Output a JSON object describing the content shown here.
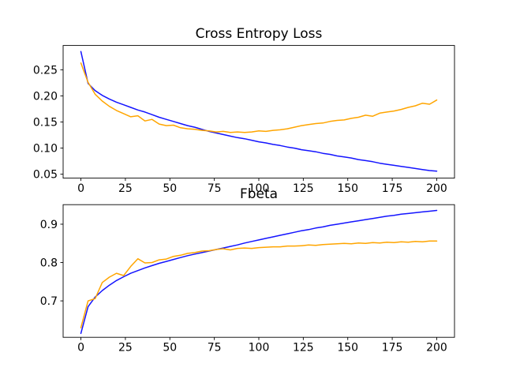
{
  "figure": {
    "background": "#ffffff",
    "axes_color": "#000000"
  },
  "chart_data": [
    {
      "type": "line",
      "title": "Cross Entropy Loss",
      "xlabel": "",
      "ylabel": "",
      "grid": false,
      "legend": "none",
      "xlim": [
        -10,
        210
      ],
      "ylim": [
        0.0425,
        0.2965
      ],
      "xticks": {
        "values": [
          0,
          25,
          50,
          75,
          100,
          125,
          150,
          175,
          200
        ],
        "labels": [
          "0",
          "25",
          "50",
          "75",
          "100",
          "125",
          "150",
          "175",
          "200"
        ]
      },
      "yticks": {
        "values": [
          0.05,
          0.1,
          0.15,
          0.2,
          0.25
        ],
        "labels": [
          "0.05",
          "0.10",
          "0.15",
          "0.20",
          "0.25"
        ]
      },
      "x": [
        0,
        4,
        8,
        12,
        16,
        20,
        24,
        28,
        32,
        36,
        40,
        44,
        48,
        52,
        56,
        60,
        64,
        68,
        72,
        76,
        80,
        84,
        88,
        92,
        96,
        100,
        104,
        108,
        112,
        116,
        120,
        124,
        128,
        132,
        136,
        140,
        144,
        148,
        152,
        156,
        160,
        164,
        168,
        172,
        176,
        180,
        184,
        188,
        192,
        196,
        200
      ],
      "series": [
        {
          "name": "blue",
          "color": "#1414ff",
          "values": [
            0.285,
            0.224,
            0.21,
            0.201,
            0.194,
            0.188,
            0.183,
            0.178,
            0.173,
            0.169,
            0.164,
            0.159,
            0.155,
            0.151,
            0.147,
            0.143,
            0.14,
            0.136,
            0.132,
            0.129,
            0.126,
            0.123,
            0.12,
            0.118,
            0.115,
            0.112,
            0.11,
            0.107,
            0.105,
            0.102,
            0.1,
            0.097,
            0.095,
            0.093,
            0.09,
            0.088,
            0.085,
            0.083,
            0.081,
            0.078,
            0.076,
            0.074,
            0.071,
            0.069,
            0.067,
            0.065,
            0.063,
            0.061,
            0.059,
            0.057,
            0.056
          ]
        },
        {
          "name": "orange",
          "color": "#ffa500",
          "values": [
            0.263,
            0.226,
            0.203,
            0.19,
            0.18,
            0.172,
            0.166,
            0.16,
            0.162,
            0.152,
            0.155,
            0.146,
            0.143,
            0.144,
            0.139,
            0.137,
            0.136,
            0.134,
            0.133,
            0.131,
            0.132,
            0.13,
            0.131,
            0.13,
            0.131,
            0.133,
            0.132,
            0.134,
            0.135,
            0.137,
            0.14,
            0.143,
            0.145,
            0.147,
            0.148,
            0.151,
            0.153,
            0.154,
            0.157,
            0.159,
            0.163,
            0.161,
            0.167,
            0.169,
            0.171,
            0.174,
            0.178,
            0.181,
            0.186,
            0.184,
            0.192
          ]
        }
      ]
    },
    {
      "type": "line",
      "title": "Fbeta",
      "xlabel": "",
      "ylabel": "",
      "grid": false,
      "legend": "none",
      "xlim": [
        -10,
        210
      ],
      "ylim": [
        0.605,
        0.951
      ],
      "xticks": {
        "values": [
          0,
          25,
          50,
          75,
          100,
          125,
          150,
          175,
          200
        ],
        "labels": [
          "0",
          "25",
          "50",
          "75",
          "100",
          "125",
          "150",
          "175",
          "200"
        ]
      },
      "yticks": {
        "values": [
          0.7,
          0.8,
          0.9
        ],
        "labels": [
          "0.7",
          "0.8",
          "0.9"
        ]
      },
      "x": [
        0,
        4,
        8,
        12,
        16,
        20,
        24,
        28,
        32,
        36,
        40,
        44,
        48,
        52,
        56,
        60,
        64,
        68,
        72,
        76,
        80,
        84,
        88,
        92,
        96,
        100,
        104,
        108,
        112,
        116,
        120,
        124,
        128,
        132,
        136,
        140,
        144,
        148,
        152,
        156,
        160,
        164,
        168,
        172,
        176,
        180,
        184,
        188,
        192,
        196,
        200
      ],
      "series": [
        {
          "name": "blue",
          "color": "#1414ff",
          "values": [
            0.615,
            0.685,
            0.71,
            0.727,
            0.741,
            0.753,
            0.763,
            0.772,
            0.779,
            0.786,
            0.792,
            0.798,
            0.803,
            0.808,
            0.813,
            0.818,
            0.822,
            0.826,
            0.83,
            0.834,
            0.838,
            0.842,
            0.846,
            0.851,
            0.855,
            0.859,
            0.863,
            0.867,
            0.871,
            0.875,
            0.879,
            0.883,
            0.886,
            0.89,
            0.893,
            0.897,
            0.9,
            0.903,
            0.906,
            0.909,
            0.912,
            0.915,
            0.918,
            0.921,
            0.923,
            0.926,
            0.928,
            0.93,
            0.932,
            0.934,
            0.936
          ]
        },
        {
          "name": "orange",
          "color": "#ffa500",
          "values": [
            0.63,
            0.7,
            0.706,
            0.748,
            0.762,
            0.772,
            0.766,
            0.79,
            0.81,
            0.799,
            0.8,
            0.807,
            0.809,
            0.816,
            0.819,
            0.824,
            0.826,
            0.83,
            0.831,
            0.834,
            0.836,
            0.833,
            0.837,
            0.838,
            0.837,
            0.839,
            0.84,
            0.841,
            0.841,
            0.843,
            0.843,
            0.844,
            0.846,
            0.845,
            0.847,
            0.848,
            0.849,
            0.85,
            0.849,
            0.851,
            0.85,
            0.852,
            0.851,
            0.853,
            0.852,
            0.854,
            0.853,
            0.855,
            0.854,
            0.856,
            0.856
          ]
        }
      ]
    }
  ]
}
